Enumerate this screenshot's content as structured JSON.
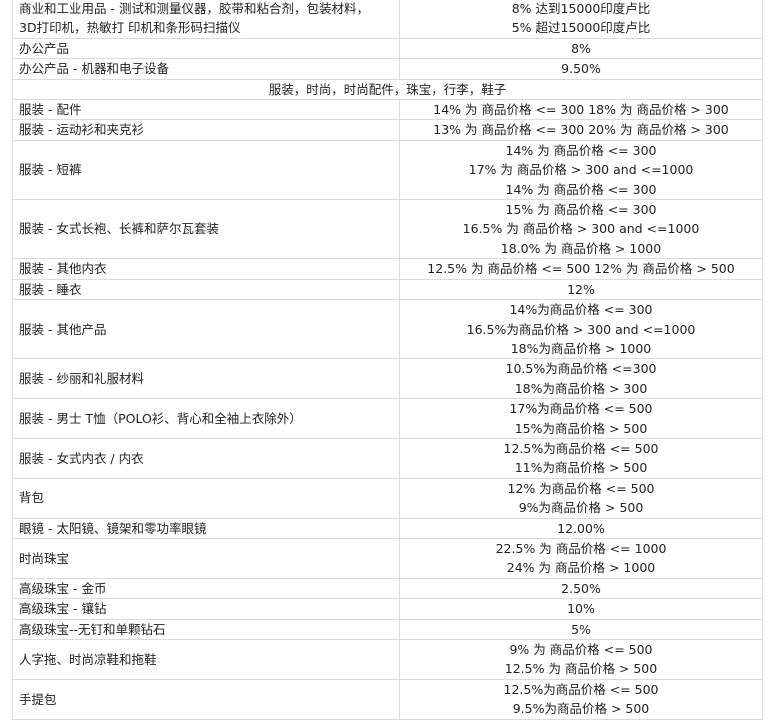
{
  "table": {
    "rows": [
      {
        "category": [
          "商业和工业用品 - 测试和测量仪器，胶带和粘合剂，包装材料，",
          "3D打印机，热敏打 印机和条形码扫描仪"
        ],
        "rate": [
          "8% 达到15000印度卢比",
          "5% 超过15000印度卢比"
        ]
      },
      {
        "category": [
          "办公产品"
        ],
        "rate": [
          "8%"
        ]
      },
      {
        "category": [
          "办公产品 - 机器和电子设备"
        ],
        "rate": [
          "9.50%"
        ]
      },
      {
        "section": "服装，时尚，时尚配件，珠宝，行李，鞋子"
      },
      {
        "category": [
          "服装 - 配件"
        ],
        "rate": [
          "14% 为 商品价格 <= 300 18% 为 商品价格 > 300"
        ]
      },
      {
        "category": [
          "服装 - 运动衫和夹克衫"
        ],
        "rate": [
          "13% 为 商品价格 <= 300 20% 为 商品价格 > 300"
        ]
      },
      {
        "category": [
          "服装 - 短裤"
        ],
        "rate": [
          "14% 为 商品价格 <= 300",
          "17% 为 商品价格 > 300 and <=1000",
          "14% 为 商品价格 <= 300"
        ]
      },
      {
        "category": [
          "服装 - 女式长袍、长裤和萨尔瓦套装"
        ],
        "rate": [
          "15% 为 商品价格 <= 300",
          "16.5% 为 商品价格 > 300 and <=1000",
          "18.0% 为 商品价格 > 1000"
        ]
      },
      {
        "category": [
          "服装 - 其他内衣"
        ],
        "rate": [
          "12.5% 为 商品价格 <= 500 12% 为 商品价格 > 500"
        ]
      },
      {
        "category": [
          "服装 - 睡衣"
        ],
        "rate": [
          "12%"
        ]
      },
      {
        "category": [
          "服装 - 其他产品"
        ],
        "rate": [
          "14%为商品价格 <= 300",
          "16.5%为商品价格 > 300 and <=1000",
          "18%为商品价格 > 1000"
        ]
      },
      {
        "category": [
          "服装 - 纱丽和礼服材料"
        ],
        "rate": [
          "10.5%为商品价格 <=300",
          "18%为商品价格 > 300"
        ]
      },
      {
        "category": [
          "服装 - 男士 T恤（POLO衫、背心和全袖上衣除外）"
        ],
        "rate": [
          "17%为商品价格 <= 500",
          "15%为商品价格 > 500"
        ]
      },
      {
        "category": [
          "服装 - 女式内衣 / 内衣"
        ],
        "rate": [
          "12.5%为商品价格 <= 500",
          "11%为商品价格 > 500"
        ]
      },
      {
        "category": [
          "背包"
        ],
        "rate": [
          "12% 为商品价格 <= 500",
          "9%为商品价格 > 500"
        ]
      },
      {
        "category": [
          "眼镜 - 太阳镜、镜架和零功率眼镜"
        ],
        "rate": [
          "12.00%"
        ]
      },
      {
        "category": [
          "时尚珠宝"
        ],
        "rate": [
          "22.5% 为 商品价格 <= 1000",
          "24% 为 商品价格 > 1000"
        ]
      },
      {
        "category": [
          "高级珠宝 - 金币"
        ],
        "rate": [
          "2.50%"
        ]
      },
      {
        "category": [
          "高级珠宝 - 镶钻"
        ],
        "rate": [
          "10%"
        ]
      },
      {
        "category": [
          "高级珠宝--无钉和单颗钻石"
        ],
        "rate": [
          "5%"
        ]
      },
      {
        "category": [
          "人字拖、时尚凉鞋和拖鞋"
        ],
        "rate": [
          "9% 为 商品价格 <= 500",
          "12.5% 为 商品价格 > 500"
        ]
      },
      {
        "category": [
          "手提包"
        ],
        "rate": [
          "12.5%为商品价格 <= 500",
          "9.5%为商品价格 > 500"
        ]
      }
    ]
  }
}
